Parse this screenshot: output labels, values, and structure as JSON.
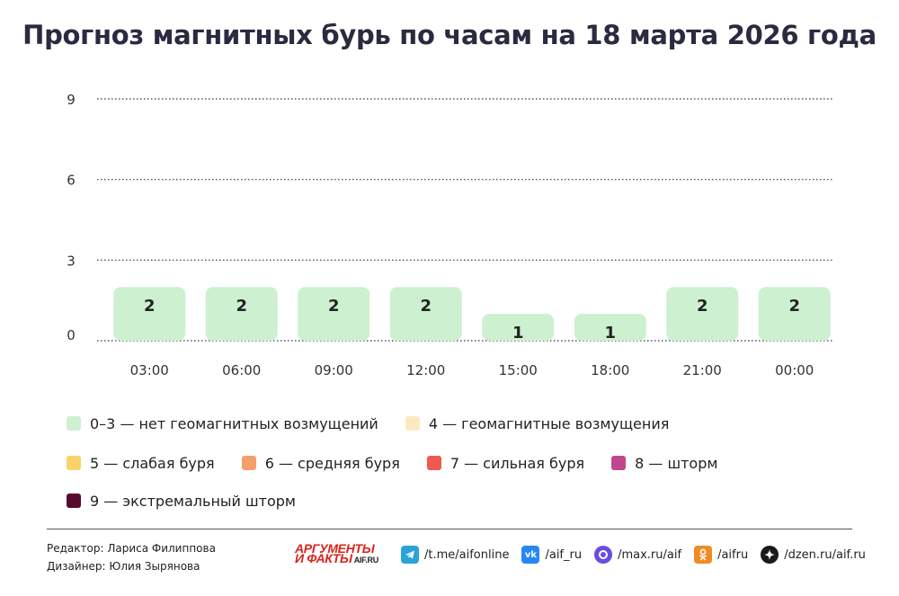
{
  "title": "Прогноз магнитных бурь по часам на 18 марта 2026 года",
  "chart_data": {
    "type": "bar",
    "categories": [
      "03:00",
      "06:00",
      "09:00",
      "12:00",
      "15:00",
      "18:00",
      "21:00",
      "00:00"
    ],
    "values": [
      2,
      2,
      2,
      2,
      1,
      1,
      2,
      2
    ],
    "yticks": [
      0,
      3,
      6,
      9
    ],
    "ylim": [
      0,
      9
    ],
    "grid": true,
    "bar_color": "#cdf0d0",
    "legend": [
      {
        "label": "0–3 — нет геомагнитных возмущений",
        "color": "#cdf0d0"
      },
      {
        "label": "4 — геомагнитные возмущения",
        "color": "#fde9c0"
      },
      {
        "label": "5 — слабая буря",
        "color": "#fbd26a"
      },
      {
        "label": "6 — средняя буря",
        "color": "#f5a06a"
      },
      {
        "label": "7 — сильная буря",
        "color": "#ee5a4f"
      },
      {
        "label": "8 — шторм",
        "color": "#c2478a"
      },
      {
        "label": "9 — экстремальный шторм",
        "color": "#5a0a2c"
      }
    ]
  },
  "footer": {
    "editor": "Редактор: Лариса Филиппова",
    "designer": "Дизайнер: Юлия Зырянова",
    "brand_line1": "АРГУМЕНТЫ",
    "brand_line2": "И ФАКТЫ",
    "brand_domain": "AIF.RU",
    "socials": [
      {
        "icon": "telegram-icon",
        "text": "/t.me/aifonline",
        "color": "#2aa3d9"
      },
      {
        "icon": "vk-icon",
        "text": "/aif_ru",
        "color": "#2787f5"
      },
      {
        "icon": "max-icon",
        "text": "/max.ru/aif",
        "color": "#6b4ce0"
      },
      {
        "icon": "odnoklassniki-icon",
        "text": "/aifru",
        "color": "#f08a24"
      },
      {
        "icon": "dzen-icon",
        "text": "/dzen.ru/aif.ru",
        "color": "#1a1a1a"
      }
    ]
  }
}
